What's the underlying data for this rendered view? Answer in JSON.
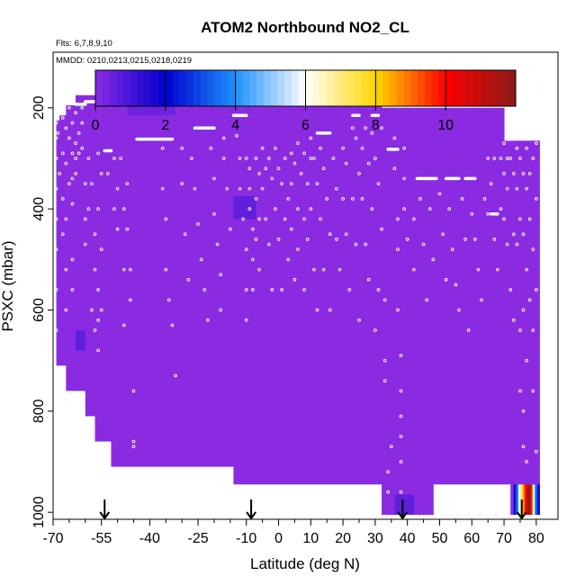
{
  "chart_data": {
    "type": "heatmap",
    "title": "ATOM2 Northbound NO2_CL",
    "flights_note": "Flts: 6,7,8,9,10",
    "dates_note": "MMDD: 0210,0213,0215,0218,0219",
    "xlabel": "Latitude (deg N)",
    "ylabel": "PSXC (mbar)",
    "xlim": [
      -70,
      82
    ],
    "ylim": [
      1010,
      90
    ],
    "x_major_ticks": [
      -70,
      -55,
      -40,
      -25,
      -10,
      0,
      10,
      20,
      30,
      40,
      50,
      60,
      70,
      80
    ],
    "x_major_labels": [
      "-70",
      "-55",
      "-40",
      "-25",
      "-10",
      "0",
      "10",
      "20",
      "30",
      "40",
      "50",
      "60",
      "70",
      "80"
    ],
    "x_minor_ticks": [
      -65,
      -60,
      -50,
      -45,
      -35,
      -30,
      -20,
      -15,
      -5,
      5,
      15,
      25,
      35,
      45,
      55,
      65,
      75
    ],
    "y_ticks": [
      200,
      400,
      600,
      800,
      1000
    ],
    "y_labels": [
      "200",
      "400",
      "600",
      "800",
      "1000"
    ],
    "colorbar": {
      "range": [
        0,
        12
      ],
      "ticks": [
        0,
        2,
        4,
        6,
        8,
        10
      ],
      "labels": [
        "0",
        "2",
        "4",
        "6",
        "8",
        "10"
      ],
      "colors": [
        "#8a2be2",
        "#0000cd",
        "#1e90ff",
        "#ffffff",
        "#ffd700",
        "#ff0000",
        "#8b1a1a"
      ]
    },
    "background_value": 0.3,
    "background_color": "#8a2be2",
    "columns": [
      {
        "lat": [
          -69,
          -68
        ],
        "top": 225,
        "bottom": 710
      },
      {
        "lat": [
          -68,
          -66
        ],
        "top": 215,
        "bottom": 710
      },
      {
        "lat": [
          -66,
          -63
        ],
        "top": 195,
        "bottom": 760
      },
      {
        "lat": [
          -63,
          -60
        ],
        "top": 175,
        "bottom": 760
      },
      {
        "lat": [
          -60,
          -57
        ],
        "top": 175,
        "bottom": 810
      },
      {
        "lat": [
          -57,
          -52
        ],
        "top": 175,
        "bottom": 860
      },
      {
        "lat": [
          -52,
          -47
        ],
        "top": 175,
        "bottom": 910
      },
      {
        "lat": [
          -47,
          -32
        ],
        "top": 175,
        "bottom": 910
      },
      {
        "lat": [
          -32,
          -14
        ],
        "top": 175,
        "bottom": 910
      },
      {
        "lat": [
          -14,
          -7
        ],
        "top": 175,
        "bottom": 945
      },
      {
        "lat": [
          -7,
          4
        ],
        "top": 175,
        "bottom": 945
      },
      {
        "lat": [
          4,
          32
        ],
        "top": 175,
        "bottom": 945
      },
      {
        "lat": [
          32,
          36
        ],
        "top": 200,
        "bottom": 1005
      },
      {
        "lat": [
          36,
          41
        ],
        "top": 200,
        "bottom": 1005
      },
      {
        "lat": [
          41,
          48
        ],
        "top": 200,
        "bottom": 1005
      },
      {
        "lat": [
          48,
          56
        ],
        "top": 200,
        "bottom": 945
      },
      {
        "lat": [
          56,
          70
        ],
        "top": 200,
        "bottom": 945
      },
      {
        "lat": [
          70,
          72
        ],
        "top": 265,
        "bottom": 945
      },
      {
        "lat": [
          72,
          81
        ],
        "top": 265,
        "bottom": 1005
      }
    ],
    "patches": [
      {
        "lat": [
          -63,
          -60
        ],
        "p": [
          640,
          680
        ],
        "value": 0.6
      },
      {
        "lat": [
          -14,
          -7
        ],
        "p": [
          375,
          420
        ],
        "value": 0.6
      },
      {
        "lat": [
          -47,
          -32
        ],
        "p": [
          175,
          215
        ],
        "value": 0.4
      },
      {
        "lat": [
          36,
          42
        ],
        "p": [
          965,
          1005
        ],
        "value": 0.6
      }
    ],
    "hotspot": {
      "lat": [
        73,
        81
      ],
      "p": [
        945,
        1005
      ],
      "values": [
        2,
        3,
        4,
        6,
        7,
        8,
        9,
        10,
        11,
        12,
        11,
        9,
        6,
        4,
        3,
        2
      ]
    },
    "flight_segments": [
      {
        "lat": [
          -63,
          -60
        ],
        "p": 193
      },
      {
        "lat": [
          -60,
          -57
        ],
        "p": 188
      },
      {
        "lat": [
          -54,
          -52
        ],
        "p": 285
      },
      {
        "lat": [
          -44,
          -33
        ],
        "p": 262
      },
      {
        "lat": [
          -26,
          -20
        ],
        "p": 240
      },
      {
        "lat": [
          -14,
          -10
        ],
        "p": 215
      },
      {
        "lat": [
          12,
          16
        ],
        "p": 250
      },
      {
        "lat": [
          23,
          25
        ],
        "p": 215
      },
      {
        "lat": [
          29,
          31
        ],
        "p": 215
      },
      {
        "lat": [
          34,
          37
        ],
        "p": 282
      },
      {
        "lat": [
          43,
          49
        ],
        "p": 340
      },
      {
        "lat": [
          52,
          56
        ],
        "p": 340
      },
      {
        "lat": [
          58,
          61
        ],
        "p": 340
      },
      {
        "lat": [
          66,
          68
        ],
        "p": 410
      },
      {
        "lat": [
          71,
          73
        ],
        "p": 262
      }
    ],
    "sample_points": [
      [
        -69,
        230
      ],
      [
        -69,
        260
      ],
      [
        -69,
        300
      ],
      [
        -69,
        360
      ],
      [
        -69,
        420
      ],
      [
        -69,
        480
      ],
      [
        -69,
        560
      ],
      [
        -69,
        640
      ],
      [
        -68.5,
        250
      ],
      [
        -68,
        330
      ],
      [
        -67,
        220
      ],
      [
        -67,
        290
      ],
      [
        -67,
        380
      ],
      [
        -67,
        450
      ],
      [
        -66,
        240
      ],
      [
        -66,
        310
      ],
      [
        -66,
        420
      ],
      [
        -66,
        520
      ],
      [
        -66,
        600
      ],
      [
        -65,
        200
      ],
      [
        -65,
        260
      ],
      [
        -65,
        350
      ],
      [
        -64,
        230
      ],
      [
        -64,
        290
      ],
      [
        -64,
        340
      ],
      [
        -64,
        390
      ],
      [
        -64,
        500
      ],
      [
        -64,
        560
      ],
      [
        -63,
        210
      ],
      [
        -63,
        270
      ],
      [
        -63,
        300
      ],
      [
        -63,
        330
      ],
      [
        -62,
        250
      ],
      [
        -62,
        290
      ],
      [
        -61,
        200
      ],
      [
        -61,
        230
      ],
      [
        -61,
        280
      ],
      [
        -60,
        350
      ],
      [
        -60,
        420
      ],
      [
        -60,
        470
      ],
      [
        -59,
        300
      ],
      [
        -59,
        400
      ],
      [
        -58,
        350
      ],
      [
        -58,
        600
      ],
      [
        -57,
        450
      ],
      [
        -57,
        520
      ],
      [
        -57,
        640
      ],
      [
        -56,
        290
      ],
      [
        -56,
        400
      ],
      [
        -56,
        560
      ],
      [
        -56,
        620
      ],
      [
        -56,
        680
      ],
      [
        -55,
        330
      ],
      [
        -55,
        480
      ],
      [
        -55,
        600
      ],
      [
        -53,
        330
      ],
      [
        -51,
        300
      ],
      [
        -51,
        400
      ],
      [
        -50,
        360
      ],
      [
        -50,
        440
      ],
      [
        -49,
        300
      ],
      [
        -48,
        400
      ],
      [
        -48,
        520
      ],
      [
        -48,
        630
      ],
      [
        -47,
        350
      ],
      [
        -47,
        440
      ],
      [
        -46,
        520
      ],
      [
        -46,
        580
      ],
      [
        -45,
        760
      ],
      [
        -45,
        860
      ],
      [
        -45,
        870
      ],
      [
        -36,
        280
      ],
      [
        -36,
        360
      ],
      [
        -35,
        420
      ],
      [
        -35,
        520
      ],
      [
        -34,
        580
      ],
      [
        -33,
        630
      ],
      [
        -32,
        730
      ],
      [
        -30,
        280
      ],
      [
        -30,
        350
      ],
      [
        -29,
        450
      ],
      [
        -28,
        540
      ],
      [
        -27,
        300
      ],
      [
        -26,
        360
      ],
      [
        -25,
        430
      ],
      [
        -24,
        500
      ],
      [
        -23,
        560
      ],
      [
        -22,
        620
      ],
      [
        -21,
        280
      ],
      [
        -20,
        340
      ],
      [
        -20,
        410
      ],
      [
        -19,
        470
      ],
      [
        -18,
        530
      ],
      [
        -18,
        600
      ],
      [
        -17,
        260
      ],
      [
        -17,
        300
      ],
      [
        -16,
        360
      ],
      [
        -15,
        440
      ],
      [
        -13,
        255
      ],
      [
        -12,
        300
      ],
      [
        -12,
        360
      ],
      [
        -11,
        420
      ],
      [
        -10,
        300
      ],
      [
        -10,
        480
      ],
      [
        -10,
        560
      ],
      [
        -10,
        620
      ],
      [
        -9,
        320
      ],
      [
        -9,
        360
      ],
      [
        -9,
        400
      ],
      [
        -8,
        440
      ],
      [
        -8,
        500
      ],
      [
        -8,
        560
      ],
      [
        -7,
        300
      ],
      [
        -7,
        380
      ],
      [
        -7,
        460
      ],
      [
        -6,
        330
      ],
      [
        -6,
        420
      ],
      [
        -6,
        520
      ],
      [
        -5,
        280
      ],
      [
        -5,
        360
      ],
      [
        -4,
        320
      ],
      [
        -4,
        420
      ],
      [
        -3,
        300
      ],
      [
        -3,
        470
      ],
      [
        -2,
        340
      ],
      [
        -2,
        560
      ],
      [
        -1,
        280
      ],
      [
        -1,
        400
      ],
      [
        0,
        320
      ],
      [
        0,
        460
      ],
      [
        1,
        350
      ],
      [
        1,
        560
      ],
      [
        2,
        300
      ],
      [
        2,
        420
      ],
      [
        3,
        380
      ],
      [
        3,
        500
      ],
      [
        4,
        290
      ],
      [
        4,
        350
      ],
      [
        4,
        440
      ],
      [
        5,
        310
      ],
      [
        5,
        540
      ],
      [
        6,
        270
      ],
      [
        6,
        400
      ],
      [
        6,
        480
      ],
      [
        7,
        330
      ],
      [
        8,
        290
      ],
      [
        8,
        420
      ],
      [
        8,
        560
      ],
      [
        9,
        350
      ],
      [
        9,
        460
      ],
      [
        10,
        260
      ],
      [
        10,
        300
      ],
      [
        10,
        400
      ],
      [
        11,
        300
      ],
      [
        11,
        520
      ],
      [
        12,
        350
      ],
      [
        12,
        600
      ],
      [
        13,
        280
      ],
      [
        13,
        420
      ],
      [
        14,
        320
      ],
      [
        14,
        520
      ],
      [
        15,
        380
      ],
      [
        16,
        450
      ],
      [
        16,
        600
      ],
      [
        17,
        300
      ],
      [
        18,
        360
      ],
      [
        18,
        460
      ],
      [
        19,
        520
      ],
      [
        20,
        280
      ],
      [
        20,
        380
      ],
      [
        21,
        310
      ],
      [
        21,
        450
      ],
      [
        22,
        560
      ],
      [
        23,
        240
      ],
      [
        23,
        380
      ],
      [
        24,
        260
      ],
      [
        24,
        470
      ],
      [
        25,
        330
      ],
      [
        25,
        620
      ],
      [
        26,
        280
      ],
      [
        26,
        380
      ],
      [
        27,
        240
      ],
      [
        27,
        470
      ],
      [
        28,
        310
      ],
      [
        28,
        540
      ],
      [
        29,
        250
      ],
      [
        29,
        400
      ],
      [
        30,
        300
      ],
      [
        30,
        640
      ],
      [
        31,
        350
      ],
      [
        31,
        560
      ],
      [
        32,
        240
      ],
      [
        32,
        440
      ],
      [
        33,
        580
      ],
      [
        33,
        700
      ],
      [
        33,
        740
      ],
      [
        34,
        920
      ],
      [
        34,
        960
      ],
      [
        35,
        870
      ],
      [
        36,
        260
      ],
      [
        36,
        320
      ],
      [
        37,
        420
      ],
      [
        37,
        480
      ],
      [
        37,
        600
      ],
      [
        38,
        690
      ],
      [
        38,
        760
      ],
      [
        38,
        810
      ],
      [
        38,
        850
      ],
      [
        38,
        900
      ],
      [
        38,
        960
      ],
      [
        39,
        280
      ],
      [
        39,
        340
      ],
      [
        39,
        400
      ],
      [
        40,
        460
      ],
      [
        42,
        420
      ],
      [
        42,
        520
      ],
      [
        44,
        380
      ],
      [
        45,
        470
      ],
      [
        46,
        580
      ],
      [
        47,
        400
      ],
      [
        48,
        500
      ],
      [
        50,
        370
      ],
      [
        51,
        450
      ],
      [
        52,
        540
      ],
      [
        53,
        400
      ],
      [
        54,
        480
      ],
      [
        55,
        550
      ],
      [
        56,
        600
      ],
      [
        57,
        380
      ],
      [
        58,
        460
      ],
      [
        59,
        640
      ],
      [
        60,
        410
      ],
      [
        61,
        460
      ],
      [
        62,
        520
      ],
      [
        63,
        580
      ],
      [
        64,
        380
      ],
      [
        65,
        300
      ],
      [
        65,
        410
      ],
      [
        66,
        350
      ],
      [
        67,
        300
      ],
      [
        67,
        460
      ],
      [
        68,
        520
      ],
      [
        69,
        300
      ],
      [
        69,
        400
      ],
      [
        70,
        270
      ],
      [
        70,
        330
      ],
      [
        70,
        420
      ],
      [
        71,
        300
      ],
      [
        71,
        360
      ],
      [
        71,
        470
      ],
      [
        72,
        300
      ],
      [
        72,
        560
      ],
      [
        73,
        330
      ],
      [
        73,
        450
      ],
      [
        73,
        620
      ],
      [
        74,
        280
      ],
      [
        74,
        360
      ],
      [
        74,
        470
      ],
      [
        75,
        300
      ],
      [
        75,
        420
      ],
      [
        75,
        640
      ],
      [
        75,
        760
      ],
      [
        76,
        330
      ],
      [
        76,
        450
      ],
      [
        76,
        600
      ],
      [
        76,
        800
      ],
      [
        76,
        870
      ],
      [
        77,
        280
      ],
      [
        77,
        360
      ],
      [
        77,
        520
      ],
      [
        77,
        700
      ],
      [
        77,
        900
      ],
      [
        78,
        330
      ],
      [
        78,
        420
      ],
      [
        78,
        580
      ],
      [
        79,
        300
      ],
      [
        79,
        480
      ],
      [
        79,
        640
      ],
      [
        79,
        760
      ],
      [
        80,
        270
      ],
      [
        80,
        380
      ],
      [
        80,
        560
      ],
      [
        80,
        880
      ]
    ],
    "arrow_markers": [
      -54,
      -8.5,
      38.5,
      75.5
    ]
  }
}
